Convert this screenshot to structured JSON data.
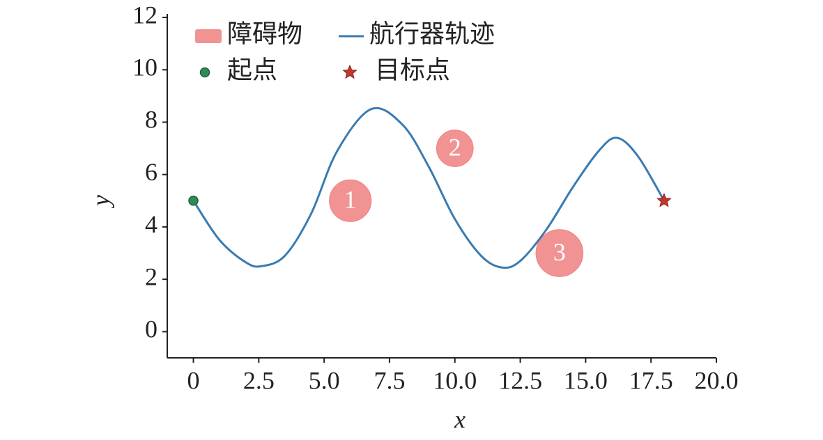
{
  "chart_data": {
    "type": "line",
    "xlabel": "x",
    "ylabel": "y",
    "xlim": [
      -1,
      20
    ],
    "ylim": [
      -1,
      12
    ],
    "xticks": [
      0,
      2.5,
      {
        "value": 5,
        "label": "5.0"
      },
      7.5,
      {
        "value": 10,
        "label": "10.0"
      },
      12.5,
      {
        "value": 15,
        "label": "15.0"
      },
      17.5,
      {
        "value": 20,
        "label": "20.0"
      }
    ],
    "yticks": [
      0,
      2,
      4,
      6,
      8,
      10,
      12
    ],
    "legend": "upper left",
    "series": [
      {
        "name": "航行器轨迹",
        "color": "#3a7bb0",
        "x": [
          0,
          1,
          2,
          2.6,
          3.5,
          4.5,
          5.5,
          6.8,
          8,
          9,
          10,
          11,
          11.8,
          12.5,
          13.5,
          14.5,
          15.5,
          16.2,
          17,
          18
        ],
        "values": [
          5,
          3.5,
          2.65,
          2.5,
          2.9,
          4.5,
          6.9,
          8.5,
          7.9,
          6.3,
          4.3,
          2.9,
          2.45,
          2.7,
          3.9,
          5.5,
          6.9,
          7.4,
          6.7,
          5
        ]
      }
    ],
    "obstacles": {
      "name": "障碍物",
      "color": "#f08080",
      "x": [
        6,
        10,
        14
      ],
      "y": [
        5,
        7,
        3
      ],
      "radius": [
        0.8,
        0.7,
        0.9
      ],
      "labels": [
        "1",
        "2",
        "3"
      ]
    },
    "start": {
      "name": "起点",
      "color": "#2e8b57",
      "x": 0,
      "y": 5
    },
    "goal": {
      "name": "目标点",
      "color": "#c0392b",
      "x": 18,
      "y": 5
    }
  }
}
